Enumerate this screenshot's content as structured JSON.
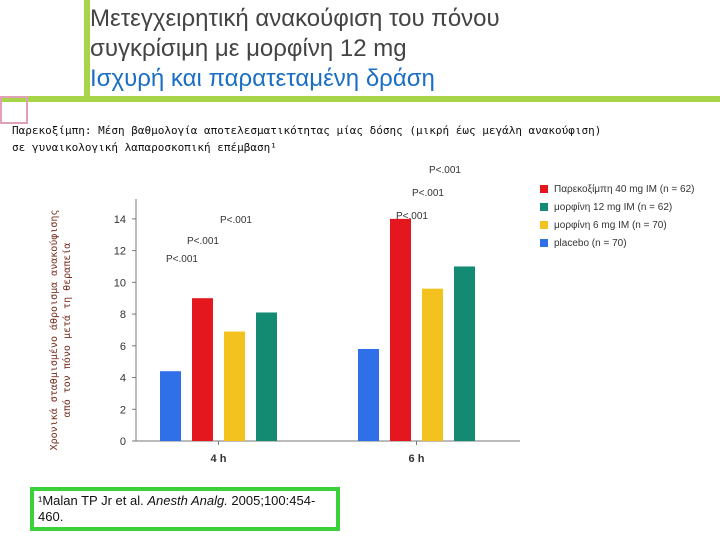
{
  "slide": {
    "title_line1": "Μετεγχειρητική ανακούφιση του πόνου",
    "title_line2": "συγκρίσιμη με μορφίνη 12 mg",
    "title_line3": "Ισχυρή και παρατεταμένη δράση",
    "subtitle_line1": "Παρεκοξίμπη: Μέση βαθμολογία αποτελεσματικότητας μίας δόσης (μικρή έως μεγάλη ανακούφιση)",
    "subtitle_line2": "σε γυναικολογική λαπαροσκοπική επέμβαση¹",
    "ylabel_line1": "Χρονικά σταθμισμένο άθροισμα ανακούφισης",
    "ylabel_line2": "από τον πόνο μετά τη θεραπεία",
    "reference_prefix": "¹Malan TP Jr et al. ",
    "reference_journal": "Anesth Analg.",
    "reference_suffix": " 2005;100:454-460.",
    "accent_color": "#a8d44a",
    "title_highlight_color": "#1a6fc4"
  },
  "chart_data": {
    "type": "bar",
    "categories": [
      "4 h",
      "6 h"
    ],
    "series": [
      {
        "name": "Παρεκοξίμπη 40 mg IM (n = 62)",
        "color": "#e4161e",
        "values": [
          9.0,
          14.0
        ]
      },
      {
        "name": "μορφίνη 12 mg IM (n = 62)",
        "color": "#138a72",
        "values": [
          8.1,
          11.0
        ]
      },
      {
        "name": "μορφίνη 6 mg IM (n = 70)",
        "color": "#f4c21e",
        "values": [
          6.9,
          9.6
        ]
      },
      {
        "name": "placebo (n = 70)",
        "color": "#2f6fe8",
        "values": [
          4.4,
          5.8
        ]
      }
    ],
    "bar_order": [
      [
        3,
        0,
        2,
        1
      ],
      [
        3,
        0,
        2,
        1
      ]
    ],
    "yticks": [
      0,
      2,
      4,
      6,
      8,
      10,
      12,
      14
    ],
    "ylim": [
      0,
      15
    ],
    "grid": false,
    "legend_position": "top-right",
    "annotations": [
      {
        "text": "P<.001",
        "group": 0,
        "level": 1
      },
      {
        "text": "P<.001",
        "group": 0,
        "level": 2
      },
      {
        "text": "P<.001",
        "group": 0,
        "level": 3
      },
      {
        "text": "P<.001",
        "group": 1,
        "level": 1
      },
      {
        "text": "P<.001",
        "group": 1,
        "level": 2
      },
      {
        "text": "P<.001",
        "group": 1,
        "level": 3
      }
    ]
  }
}
